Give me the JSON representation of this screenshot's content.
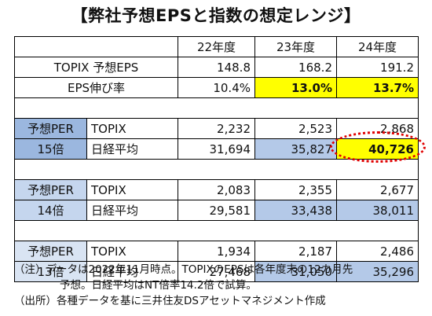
{
  "title": "【弊社予想EPSと指数の想定レンジ】",
  "years": [
    "22年度",
    "23年度",
    "24年度"
  ],
  "eps_row": {
    "label": "TOPIX 予想EPS",
    "values": [
      "148.8",
      "168.2",
      "191.2"
    ]
  },
  "growth_row": {
    "label": "EPS伸び率",
    "values": [
      "10.4%",
      "13.0%",
      "13.7%"
    ]
  },
  "groups": [
    {
      "per_label": "予想PER",
      "multiple": "15倍",
      "topix": {
        "label": "TOPIX",
        "values": [
          "2,232",
          "2,523",
          "2,868"
        ]
      },
      "nikkei": {
        "label": "日経平均",
        "values": [
          "31,694",
          "35,827",
          "40,726"
        ]
      }
    },
    {
      "per_label": "予想PER",
      "multiple": "14倍",
      "topix": {
        "label": "TOPIX",
        "values": [
          "2,083",
          "2,355",
          "2,677"
        ]
      },
      "nikkei": {
        "label": "日経平均",
        "values": [
          "29,581",
          "33,438",
          "38,011"
        ]
      }
    },
    {
      "per_label": "予想PER",
      "multiple": "13倍",
      "topix": {
        "label": "TOPIX",
        "values": [
          "1,934",
          "2,187",
          "2,486"
        ]
      },
      "nikkei": {
        "label": "日経平均",
        "values": [
          "27,468",
          "31,050",
          "35,296"
        ]
      }
    }
  ],
  "notes": {
    "line1": "（注）データは2022年11月時点。TOPIXのEPSは各年度末の12カ月先",
    "line2": "予想。日経平均はNT倍率14.2倍で試算。",
    "line3": "（出所）各種データを基に三井住友DSアセットマネジメント作成"
  },
  "colors": {
    "highlight": "#ffff00",
    "circle": "#e00000"
  }
}
